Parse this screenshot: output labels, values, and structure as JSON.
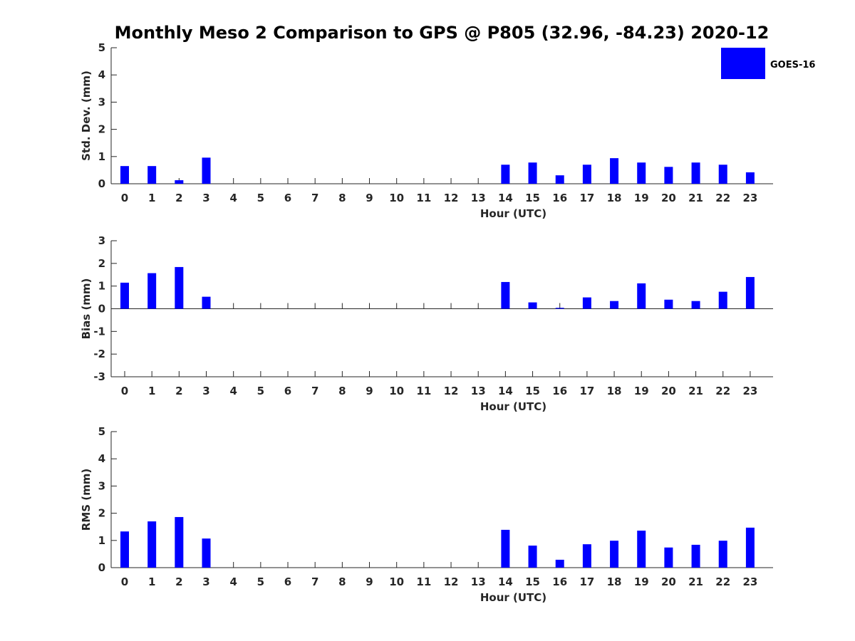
{
  "title": "Monthly Meso 2 Comparison to GPS @ P805 (32.96, -84.23) 2020-12",
  "legend": {
    "label": "GOES-16",
    "color": "#0000ff",
    "placement": "top-right"
  },
  "chart_data": [
    {
      "type": "bar",
      "xlabel": "Hour (UTC)",
      "ylabel": "Std. Dev. (mm)",
      "ylim": [
        0,
        5
      ],
      "yticks": [
        "0",
        "1",
        "2",
        "3",
        "4",
        "5"
      ],
      "categories": [
        "0",
        "1",
        "2",
        "3",
        "4",
        "5",
        "6",
        "7",
        "8",
        "9",
        "10",
        "11",
        "12",
        "13",
        "14",
        "15",
        "16",
        "17",
        "18",
        "19",
        "20",
        "21",
        "22",
        "23"
      ],
      "series": [
        {
          "name": "GOES-16",
          "values": [
            0.65,
            0.65,
            0.13,
            0.96,
            null,
            null,
            null,
            null,
            null,
            null,
            null,
            null,
            null,
            null,
            0.7,
            0.78,
            0.31,
            0.7,
            0.94,
            0.78,
            0.62,
            0.78,
            0.7,
            0.42
          ]
        }
      ]
    },
    {
      "type": "bar",
      "xlabel": "Hour (UTC)",
      "ylabel": "Bias (mm)",
      "ylim": [
        -3,
        3
      ],
      "yticks": [
        "-3",
        "-2",
        "-1",
        "0",
        "1",
        "2",
        "3"
      ],
      "categories": [
        "0",
        "1",
        "2",
        "3",
        "4",
        "5",
        "6",
        "7",
        "8",
        "9",
        "10",
        "11",
        "12",
        "13",
        "14",
        "15",
        "16",
        "17",
        "18",
        "19",
        "20",
        "21",
        "22",
        "23"
      ],
      "series": [
        {
          "name": "GOES-16",
          "values": [
            1.15,
            1.57,
            1.84,
            0.53,
            null,
            null,
            null,
            null,
            null,
            null,
            null,
            null,
            null,
            null,
            1.18,
            0.28,
            0.04,
            0.5,
            0.34,
            1.12,
            0.4,
            0.34,
            0.75,
            1.4
          ]
        }
      ]
    },
    {
      "type": "bar",
      "xlabel": "Hour (UTC)",
      "ylabel": "RMS (mm)",
      "ylim": [
        0,
        5
      ],
      "yticks": [
        "0",
        "1",
        "2",
        "3",
        "4",
        "5"
      ],
      "categories": [
        "0",
        "1",
        "2",
        "3",
        "4",
        "5",
        "6",
        "7",
        "8",
        "9",
        "10",
        "11",
        "12",
        "13",
        "14",
        "15",
        "16",
        "17",
        "18",
        "19",
        "20",
        "21",
        "22",
        "23"
      ],
      "series": [
        {
          "name": "GOES-16",
          "values": [
            1.33,
            1.7,
            1.86,
            1.07,
            null,
            null,
            null,
            null,
            null,
            null,
            null,
            null,
            null,
            null,
            1.39,
            0.81,
            0.29,
            0.86,
            0.99,
            1.36,
            0.74,
            0.84,
            0.99,
            1.47
          ]
        }
      ]
    }
  ]
}
